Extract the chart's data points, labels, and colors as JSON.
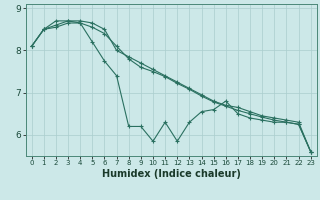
{
  "xlabel": "Humidex (Indice chaleur)",
  "bg_color": "#cce8e8",
  "grid_color": "#aacece",
  "line_color": "#2a7060",
  "xlim": [
    -0.5,
    23.5
  ],
  "ylim": [
    5.5,
    9.1
  ],
  "yticks": [
    6,
    7,
    8,
    9
  ],
  "xticks": [
    0,
    1,
    2,
    3,
    4,
    5,
    6,
    7,
    8,
    9,
    10,
    11,
    12,
    13,
    14,
    15,
    16,
    17,
    18,
    19,
    20,
    21,
    22,
    23
  ],
  "line1": [
    8.1,
    8.5,
    8.6,
    8.7,
    8.7,
    8.65,
    8.5,
    8.0,
    7.85,
    7.7,
    7.55,
    7.4,
    7.25,
    7.1,
    6.95,
    6.8,
    6.7,
    6.65,
    6.55,
    6.45,
    6.4,
    6.35,
    6.3,
    5.6
  ],
  "line2": [
    8.1,
    8.5,
    8.55,
    8.65,
    8.65,
    8.2,
    7.75,
    7.4,
    6.2,
    6.2,
    5.85,
    6.3,
    5.85,
    6.3,
    6.55,
    6.6,
    6.8,
    6.5,
    6.4,
    6.35,
    6.3,
    6.3,
    6.25,
    5.6
  ],
  "line3": [
    8.1,
    8.5,
    8.7,
    8.7,
    8.65,
    8.55,
    8.4,
    8.1,
    7.8,
    7.6,
    7.5,
    7.38,
    7.22,
    7.08,
    6.92,
    6.78,
    6.68,
    6.58,
    6.5,
    6.42,
    6.35,
    6.3,
    6.25,
    5.6
  ]
}
